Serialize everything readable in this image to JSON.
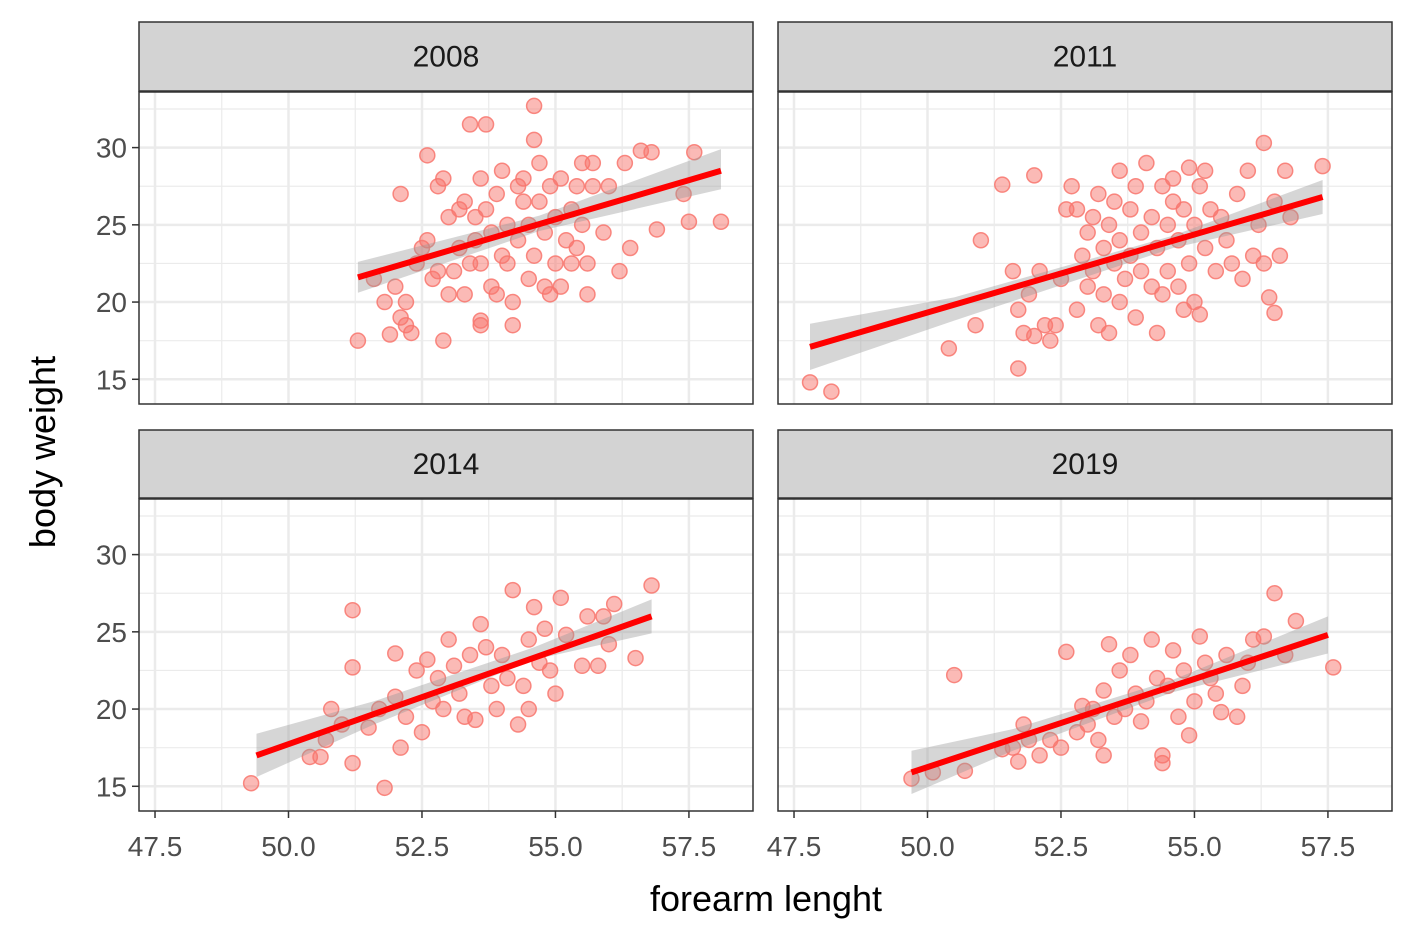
{
  "chart_data": {
    "type": "scatter",
    "xlabel": "forearm lenght",
    "ylabel": "body weight",
    "xlim": [
      47.2,
      58.7
    ],
    "ylim": [
      13.4,
      33.6
    ],
    "x_ticks": [
      47.5,
      50.0,
      52.5,
      55.0,
      57.5
    ],
    "x_tick_labels": [
      "47.5",
      "50.0",
      "52.5",
      "55.0",
      "57.5"
    ],
    "y_ticks": [
      15,
      20,
      25,
      30
    ],
    "y_tick_labels": [
      "15",
      "20",
      "25",
      "30"
    ],
    "grid": true,
    "legend": "none",
    "colors": {
      "points": "#F8766D",
      "fit_line": "#FF0000",
      "ribbon": "#999999",
      "strip": "#D3D3D3",
      "grid": "#EBEBEB"
    },
    "panels": [
      {
        "label": "2008",
        "fit": {
          "x": [
            51.3,
            58.1
          ],
          "y": [
            21.6,
            28.5
          ]
        },
        "ribbon": {
          "x": [
            51.3,
            54.7,
            58.1
          ],
          "lower": [
            20.6,
            24.6,
            27.3
          ],
          "upper": [
            22.6,
            25.6,
            29.9
          ]
        },
        "points": [
          [
            51.3,
            17.5
          ],
          [
            51.6,
            21.5
          ],
          [
            51.8,
            20.0
          ],
          [
            51.9,
            17.9
          ],
          [
            52.0,
            21.0
          ],
          [
            52.1,
            27.0
          ],
          [
            52.1,
            19.0
          ],
          [
            52.2,
            18.5
          ],
          [
            52.2,
            20.0
          ],
          [
            52.3,
            18.0
          ],
          [
            52.4,
            22.5
          ],
          [
            52.5,
            23.5
          ],
          [
            52.6,
            24.0
          ],
          [
            52.6,
            29.5
          ],
          [
            52.7,
            21.5
          ],
          [
            52.8,
            27.5
          ],
          [
            52.8,
            22.0
          ],
          [
            52.9,
            17.5
          ],
          [
            52.9,
            28.0
          ],
          [
            53.0,
            20.5
          ],
          [
            53.0,
            25.5
          ],
          [
            53.1,
            22.0
          ],
          [
            53.2,
            26.0
          ],
          [
            53.2,
            23.5
          ],
          [
            53.3,
            20.5
          ],
          [
            53.3,
            26.5
          ],
          [
            53.4,
            31.5
          ],
          [
            53.4,
            22.5
          ],
          [
            53.5,
            25.5
          ],
          [
            53.5,
            24.0
          ],
          [
            53.6,
            18.5
          ],
          [
            53.6,
            18.8
          ],
          [
            53.6,
            28.0
          ],
          [
            53.6,
            22.5
          ],
          [
            53.7,
            26.0
          ],
          [
            53.7,
            31.5
          ],
          [
            53.8,
            24.5
          ],
          [
            53.8,
            21.0
          ],
          [
            53.9,
            20.5
          ],
          [
            53.9,
            27.0
          ],
          [
            54.0,
            23.0
          ],
          [
            54.0,
            28.5
          ],
          [
            54.1,
            25.0
          ],
          [
            54.1,
            22.5
          ],
          [
            54.2,
            18.5
          ],
          [
            54.2,
            20.0
          ],
          [
            54.3,
            27.5
          ],
          [
            54.3,
            24.0
          ],
          [
            54.4,
            26.5
          ],
          [
            54.4,
            28.0
          ],
          [
            54.5,
            21.5
          ],
          [
            54.5,
            25.0
          ],
          [
            54.6,
            32.7
          ],
          [
            54.6,
            30.5
          ],
          [
            54.6,
            23.0
          ],
          [
            54.7,
            29.0
          ],
          [
            54.7,
            26.5
          ],
          [
            54.8,
            21.0
          ],
          [
            54.8,
            24.5
          ],
          [
            54.9,
            27.5
          ],
          [
            54.9,
            20.5
          ],
          [
            55.0,
            25.5
          ],
          [
            55.0,
            22.5
          ],
          [
            55.1,
            28.0
          ],
          [
            55.1,
            21.0
          ],
          [
            55.2,
            24.0
          ],
          [
            55.3,
            26.0
          ],
          [
            55.3,
            22.5
          ],
          [
            55.4,
            27.5
          ],
          [
            55.4,
            23.5
          ],
          [
            55.5,
            29.0
          ],
          [
            55.5,
            25.0
          ],
          [
            55.6,
            20.5
          ],
          [
            55.6,
            22.5
          ],
          [
            55.7,
            29.0
          ],
          [
            55.7,
            27.5
          ],
          [
            55.9,
            24.5
          ],
          [
            56.0,
            27.5
          ],
          [
            56.2,
            22.0
          ],
          [
            56.3,
            29.0
          ],
          [
            56.4,
            23.5
          ],
          [
            56.6,
            29.8
          ],
          [
            56.8,
            29.7
          ],
          [
            56.9,
            24.7
          ],
          [
            57.4,
            27.0
          ],
          [
            57.5,
            25.2
          ],
          [
            57.6,
            29.7
          ],
          [
            58.1,
            25.2
          ]
        ]
      },
      {
        "label": "2011",
        "fit": {
          "x": [
            47.8,
            57.4
          ],
          "y": [
            17.1,
            26.8
          ]
        },
        "ribbon": {
          "x": [
            47.8,
            50.5,
            54.6,
            57.4
          ],
          "lower": [
            15.6,
            18.8,
            23.5,
            25.7
          ],
          "upper": [
            18.6,
            20.3,
            24.3,
            27.9
          ]
        },
        "points": [
          [
            47.8,
            14.8
          ],
          [
            48.2,
            14.2
          ],
          [
            50.4,
            17.0
          ],
          [
            50.9,
            18.5
          ],
          [
            51.0,
            24.0
          ],
          [
            51.4,
            27.6
          ],
          [
            51.6,
            22.0
          ],
          [
            51.7,
            19.5
          ],
          [
            51.7,
            15.7
          ],
          [
            51.8,
            18.0
          ],
          [
            51.9,
            20.5
          ],
          [
            52.0,
            17.8
          ],
          [
            52.0,
            28.2
          ],
          [
            52.1,
            22.0
          ],
          [
            52.2,
            18.5
          ],
          [
            52.3,
            17.5
          ],
          [
            52.4,
            18.5
          ],
          [
            52.5,
            21.5
          ],
          [
            52.6,
            26.0
          ],
          [
            52.7,
            27.5
          ],
          [
            52.8,
            19.5
          ],
          [
            52.8,
            26.0
          ],
          [
            52.9,
            23.0
          ],
          [
            53.0,
            21.0
          ],
          [
            53.0,
            24.5
          ],
          [
            53.1,
            25.5
          ],
          [
            53.1,
            22.0
          ],
          [
            53.2,
            18.5
          ],
          [
            53.2,
            27.0
          ],
          [
            53.3,
            20.5
          ],
          [
            53.3,
            23.5
          ],
          [
            53.4,
            18.0
          ],
          [
            53.4,
            25.0
          ],
          [
            53.5,
            22.5
          ],
          [
            53.5,
            26.5
          ],
          [
            53.6,
            20.0
          ],
          [
            53.6,
            24.0
          ],
          [
            53.6,
            28.5
          ],
          [
            53.7,
            21.5
          ],
          [
            53.8,
            23.0
          ],
          [
            53.8,
            26.0
          ],
          [
            53.9,
            19.0
          ],
          [
            53.9,
            27.5
          ],
          [
            54.0,
            22.0
          ],
          [
            54.0,
            24.5
          ],
          [
            54.1,
            29.0
          ],
          [
            54.2,
            21.0
          ],
          [
            54.2,
            25.5
          ],
          [
            54.3,
            18.0
          ],
          [
            54.3,
            23.5
          ],
          [
            54.4,
            27.5
          ],
          [
            54.4,
            20.5
          ],
          [
            54.5,
            25.0
          ],
          [
            54.5,
            22.0
          ],
          [
            54.6,
            26.5
          ],
          [
            54.6,
            28.0
          ],
          [
            54.7,
            21.0
          ],
          [
            54.7,
            24.0
          ],
          [
            54.8,
            19.5
          ],
          [
            54.8,
            26.0
          ],
          [
            54.9,
            22.5
          ],
          [
            54.9,
            28.7
          ],
          [
            55.0,
            20.0
          ],
          [
            55.0,
            25.0
          ],
          [
            55.1,
            27.5
          ],
          [
            55.1,
            19.2
          ],
          [
            55.2,
            23.5
          ],
          [
            55.2,
            28.5
          ],
          [
            55.3,
            26.0
          ],
          [
            55.4,
            22.0
          ],
          [
            55.5,
            25.5
          ],
          [
            55.6,
            24.0
          ],
          [
            55.7,
            22.5
          ],
          [
            55.8,
            27.0
          ],
          [
            55.9,
            21.5
          ],
          [
            56.0,
            28.5
          ],
          [
            56.1,
            23.0
          ],
          [
            56.2,
            25.0
          ],
          [
            56.3,
            30.3
          ],
          [
            56.3,
            22.5
          ],
          [
            56.4,
            20.3
          ],
          [
            56.5,
            26.5
          ],
          [
            56.5,
            19.3
          ],
          [
            56.6,
            23.0
          ],
          [
            56.7,
            28.5
          ],
          [
            56.8,
            25.5
          ],
          [
            57.4,
            28.8
          ]
        ]
      },
      {
        "label": "2014",
        "fit": {
          "x": [
            49.4,
            56.8
          ],
          "y": [
            17.0,
            26.0
          ]
        },
        "ribbon": {
          "x": [
            49.4,
            51.6,
            54.6,
            56.8
          ],
          "lower": [
            15.6,
            19.0,
            23.2,
            24.9
          ],
          "upper": [
            18.4,
            20.5,
            24.0,
            27.1
          ]
        },
        "points": [
          [
            49.3,
            15.2
          ],
          [
            50.4,
            16.9
          ],
          [
            50.6,
            16.9
          ],
          [
            50.7,
            18.0
          ],
          [
            50.8,
            20.0
          ],
          [
            51.0,
            19.0
          ],
          [
            51.2,
            26.4
          ],
          [
            51.2,
            22.7
          ],
          [
            51.2,
            16.5
          ],
          [
            51.5,
            18.8
          ],
          [
            51.7,
            20.0
          ],
          [
            51.8,
            14.9
          ],
          [
            52.0,
            20.8
          ],
          [
            52.0,
            23.6
          ],
          [
            52.1,
            17.5
          ],
          [
            52.2,
            19.5
          ],
          [
            52.4,
            22.5
          ],
          [
            52.5,
            18.5
          ],
          [
            52.6,
            23.2
          ],
          [
            52.7,
            20.5
          ],
          [
            52.8,
            22.0
          ],
          [
            52.9,
            20.0
          ],
          [
            53.0,
            24.5
          ],
          [
            53.1,
            22.8
          ],
          [
            53.2,
            21.0
          ],
          [
            53.3,
            19.5
          ],
          [
            53.4,
            23.5
          ],
          [
            53.5,
            19.3
          ],
          [
            53.6,
            25.5
          ],
          [
            53.7,
            24.0
          ],
          [
            53.8,
            21.5
          ],
          [
            53.9,
            20.0
          ],
          [
            54.0,
            23.5
          ],
          [
            54.1,
            22.0
          ],
          [
            54.2,
            27.7
          ],
          [
            54.3,
            19.0
          ],
          [
            54.4,
            21.5
          ],
          [
            54.5,
            24.5
          ],
          [
            54.5,
            20.0
          ],
          [
            54.6,
            26.6
          ],
          [
            54.7,
            23.0
          ],
          [
            54.8,
            25.2
          ],
          [
            54.9,
            22.5
          ],
          [
            55.0,
            21.0
          ],
          [
            55.1,
            27.2
          ],
          [
            55.2,
            24.8
          ],
          [
            55.5,
            22.8
          ],
          [
            55.6,
            26.0
          ],
          [
            55.8,
            22.8
          ],
          [
            55.9,
            26.0
          ],
          [
            56.0,
            24.2
          ],
          [
            56.1,
            26.8
          ],
          [
            56.5,
            23.3
          ],
          [
            56.8,
            28.0
          ]
        ]
      },
      {
        "label": "2019",
        "fit": {
          "x": [
            49.7,
            57.5
          ],
          "y": [
            15.9,
            24.8
          ]
        },
        "ribbon": {
          "x": [
            49.7,
            51.6,
            54.6,
            57.5
          ],
          "lower": [
            14.5,
            17.3,
            21.1,
            23.6
          ],
          "upper": [
            17.3,
            18.7,
            21.9,
            26.0
          ]
        },
        "points": [
          [
            49.7,
            15.5
          ],
          [
            50.1,
            15.9
          ],
          [
            50.5,
            22.2
          ],
          [
            50.7,
            16.0
          ],
          [
            51.4,
            17.4
          ],
          [
            51.6,
            17.5
          ],
          [
            51.7,
            16.6
          ],
          [
            51.8,
            19.0
          ],
          [
            51.9,
            18.0
          ],
          [
            52.1,
            17.0
          ],
          [
            52.3,
            18.0
          ],
          [
            52.5,
            17.5
          ],
          [
            52.6,
            23.7
          ],
          [
            52.8,
            18.5
          ],
          [
            52.9,
            20.2
          ],
          [
            53.0,
            19.0
          ],
          [
            53.1,
            20.0
          ],
          [
            53.2,
            18.0
          ],
          [
            53.3,
            21.2
          ],
          [
            53.3,
            17.0
          ],
          [
            53.4,
            24.2
          ],
          [
            53.5,
            19.5
          ],
          [
            53.6,
            22.5
          ],
          [
            53.7,
            20.0
          ],
          [
            53.8,
            23.5
          ],
          [
            53.9,
            21.0
          ],
          [
            54.0,
            19.2
          ],
          [
            54.1,
            20.5
          ],
          [
            54.2,
            24.5
          ],
          [
            54.3,
            22.0
          ],
          [
            54.4,
            17.0
          ],
          [
            54.4,
            16.5
          ],
          [
            54.5,
            21.5
          ],
          [
            54.6,
            23.8
          ],
          [
            54.7,
            19.5
          ],
          [
            54.8,
            22.5
          ],
          [
            54.9,
            18.3
          ],
          [
            55.0,
            20.5
          ],
          [
            55.1,
            24.7
          ],
          [
            55.2,
            23.0
          ],
          [
            55.3,
            22.0
          ],
          [
            55.4,
            21.0
          ],
          [
            55.5,
            19.8
          ],
          [
            55.6,
            23.5
          ],
          [
            55.8,
            19.5
          ],
          [
            55.9,
            21.5
          ],
          [
            56.0,
            23.0
          ],
          [
            56.1,
            24.5
          ],
          [
            56.3,
            24.7
          ],
          [
            56.5,
            27.5
          ],
          [
            56.7,
            23.5
          ],
          [
            56.9,
            25.7
          ],
          [
            57.6,
            22.7
          ]
        ]
      }
    ]
  }
}
